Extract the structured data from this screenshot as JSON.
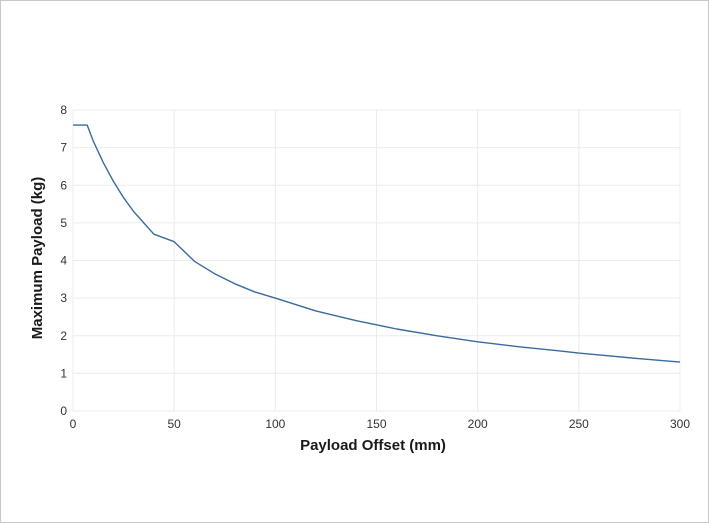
{
  "chart_data": {
    "type": "line",
    "title": "",
    "xlabel": "Payload Offset (mm)",
    "ylabel": "Maximum Payload (kg)",
    "xlim": [
      0,
      300
    ],
    "ylim": [
      0,
      8
    ],
    "x_ticks": [
      0,
      50,
      100,
      150,
      200,
      250,
      300
    ],
    "y_ticks": [
      0,
      1,
      2,
      3,
      4,
      5,
      6,
      7,
      8
    ],
    "grid": true,
    "legend": "none",
    "line_color": "#3a6a9e",
    "series": [
      {
        "x": [
          0,
          7,
          10,
          15,
          20,
          25,
          30,
          40,
          50,
          60,
          70,
          80,
          90,
          100,
          120,
          140,
          150,
          160,
          180,
          200,
          220,
          240,
          250,
          260,
          280,
          300
        ],
        "y": [
          7.6,
          7.6,
          7.18,
          6.6,
          6.1,
          5.67,
          5.3,
          4.7,
          4.5,
          3.98,
          3.65,
          3.38,
          3.16,
          3.0,
          2.66,
          2.4,
          2.29,
          2.18,
          2.0,
          1.84,
          1.71,
          1.6,
          1.54,
          1.49,
          1.39,
          1.3
        ]
      }
    ]
  }
}
